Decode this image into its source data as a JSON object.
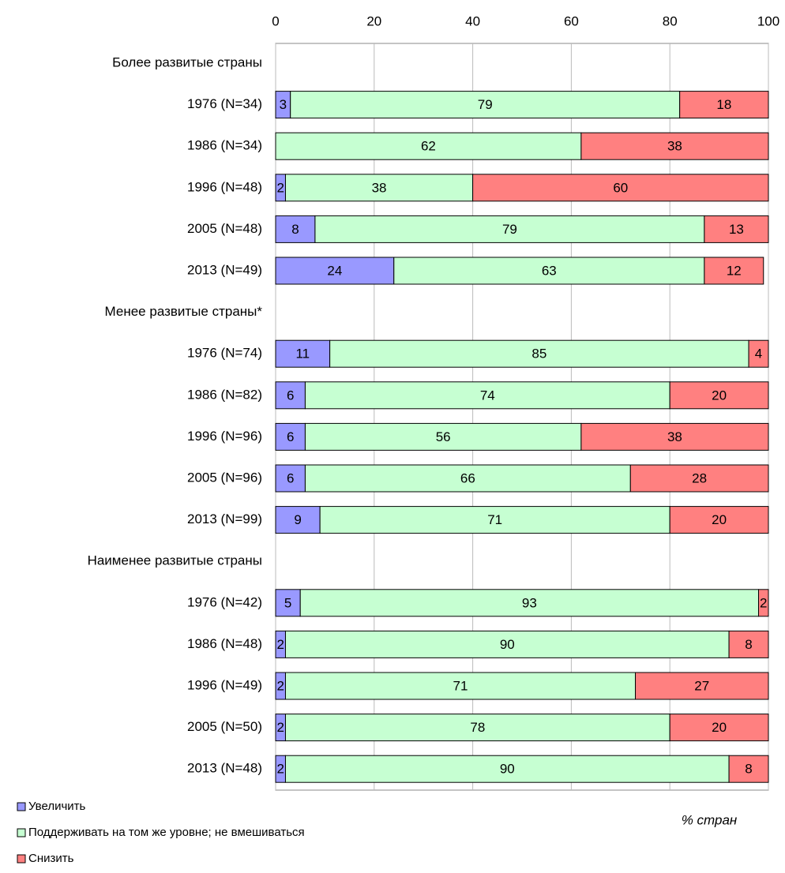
{
  "chart_data": {
    "type": "stacked_barh",
    "x_label": "% стран",
    "categories": [
      "Более развитые страны",
      "1976 (N=34)",
      "1986 (N=34)",
      "1996 (N=48)",
      "2005 (N=48)",
      "2013 (N=49)",
      "Менее развитые страны*",
      "1976 (N=74)",
      "1986 (N=82)",
      "1996 (N=96)",
      "2005 (N=96)",
      "2013 (N=99)",
      "Наименее развитые страны",
      "1976 (N=42)",
      "1986 (N=48)",
      "1996 (N=49)",
      "2005 (N=50)",
      "2013 (N=48)"
    ],
    "series": [
      {
        "name": "Увеличить",
        "color": "#9999ff",
        "values": [
          null,
          3,
          null,
          2,
          8,
          24,
          null,
          11,
          6,
          6,
          6,
          9,
          null,
          5,
          2,
          2,
          2,
          2
        ]
      },
      {
        "name": "Поддерживать на том же уровне; не вмешиваться",
        "color": "#c6ffd2",
        "values": [
          null,
          79,
          62,
          38,
          79,
          63,
          null,
          85,
          74,
          56,
          66,
          71,
          null,
          93,
          90,
          71,
          78,
          90
        ]
      },
      {
        "name": "Снизить",
        "color": "#ff8080",
        "values": [
          null,
          18,
          38,
          60,
          13,
          12,
          null,
          4,
          20,
          38,
          28,
          20,
          null,
          2,
          8,
          27,
          20,
          8
        ]
      }
    ],
    "xlim": [
      0,
      100
    ],
    "xticks": [
      0,
      20,
      40,
      60,
      80,
      100
    ],
    "grid": true
  }
}
